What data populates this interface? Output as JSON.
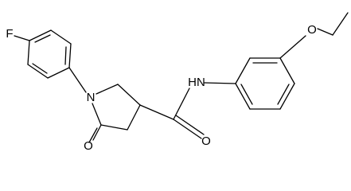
{
  "atoms": [
    {
      "label": "F"
    },
    {
      "label": "N"
    },
    {
      "label": "O"
    },
    {
      "label": "HN"
    },
    {
      "label": "O"
    },
    {
      "label": "O"
    }
  ]
}
